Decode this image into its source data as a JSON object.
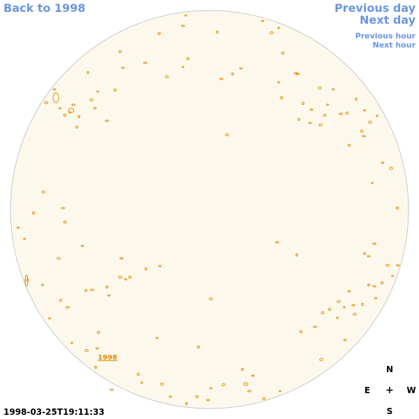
{
  "nav": {
    "back_label": "Back to 1998",
    "prev_day_label": "Previous day",
    "next_day_label": "Next day",
    "prev_hour_label": "Previous hour",
    "next_hour_label": "Next hour"
  },
  "compass": {
    "n": "N",
    "e": "E",
    "w": "W",
    "s": "S",
    "center": "+"
  },
  "timestamp": "1998-03-25T19:11:33",
  "region_label": "1998",
  "colors": {
    "disk_fill": "#fdf8ec",
    "disk_stroke": "#c8c8c8",
    "feature": "#e08a00",
    "link": "#6b96e0"
  }
}
